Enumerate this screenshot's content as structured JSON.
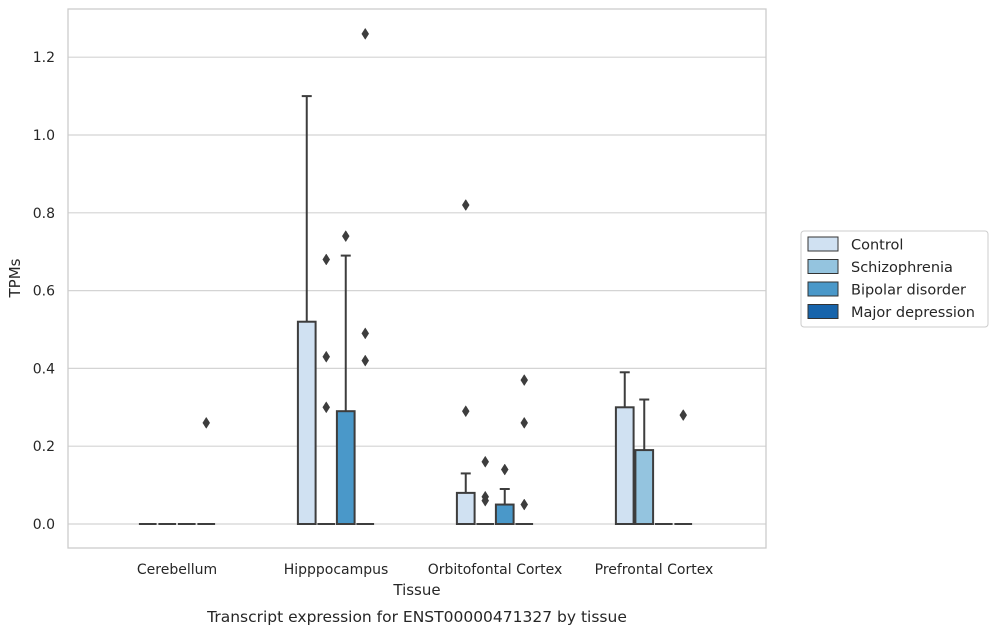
{
  "chart_data": {
    "type": "box",
    "xlabel": "Tissue",
    "ylabel": "TPMs",
    "caption": "Transcript expression for ENST00000471327 by tissue",
    "ylim": [
      -0.06,
      1.33
    ],
    "yticks": [
      "0.0",
      "0.2",
      "0.4",
      "0.6",
      "0.8",
      "1.0",
      "1.2"
    ],
    "categories": [
      "Cerebellum",
      "Hipppocampus",
      "Orbitofontal Cortex",
      "Prefrontal Cortex"
    ],
    "grid": true,
    "legend_position": "right",
    "series": [
      {
        "name": "Control",
        "color": "#d0e1f2",
        "boxes": [
          {
            "q1": 0,
            "median": 0,
            "q3": 0,
            "whislo": 0,
            "whishi": 0,
            "fliers": []
          },
          {
            "q1": 0,
            "median": 0,
            "q3": 0.52,
            "whislo": 0,
            "whishi": 1.1,
            "fliers": []
          },
          {
            "q1": 0,
            "median": 0,
            "q3": 0.08,
            "whislo": 0,
            "whishi": 0.13,
            "fliers": [
              0.82,
              0.29
            ]
          },
          {
            "q1": 0,
            "median": 0,
            "q3": 0.3,
            "whislo": 0,
            "whishi": 0.39,
            "fliers": []
          }
        ]
      },
      {
        "name": "Schizophrenia",
        "color": "#94c4df",
        "boxes": [
          {
            "q1": 0,
            "median": 0,
            "q3": 0,
            "whislo": 0,
            "whishi": 0,
            "fliers": []
          },
          {
            "q1": 0,
            "median": 0,
            "q3": 0,
            "whislo": 0,
            "whishi": 0,
            "fliers": [
              0.68,
              0.43,
              0.3
            ]
          },
          {
            "q1": 0,
            "median": 0,
            "q3": 0,
            "whislo": 0,
            "whishi": 0,
            "fliers": [
              0.16,
              0.07,
              0.06
            ]
          },
          {
            "q1": 0,
            "median": 0,
            "q3": 0.19,
            "whislo": 0,
            "whishi": 0.32,
            "fliers": []
          }
        ]
      },
      {
        "name": "Bipolar disorder",
        "color": "#4a98c9",
        "boxes": [
          {
            "q1": 0,
            "median": 0,
            "q3": 0,
            "whislo": 0,
            "whishi": 0,
            "fliers": []
          },
          {
            "q1": 0,
            "median": 0,
            "q3": 0.29,
            "whislo": 0,
            "whishi": 0.69,
            "fliers": [
              0.74
            ]
          },
          {
            "q1": 0,
            "median": 0,
            "q3": 0.05,
            "whislo": 0,
            "whishi": 0.09,
            "fliers": [
              0.14
            ]
          },
          {
            "q1": 0,
            "median": 0,
            "q3": 0,
            "whislo": 0,
            "whishi": 0,
            "fliers": []
          }
        ]
      },
      {
        "name": "Major depression",
        "color": "#1764ab",
        "boxes": [
          {
            "q1": 0,
            "median": 0,
            "q3": 0,
            "whislo": 0,
            "whishi": 0,
            "fliers": [
              0.26
            ]
          },
          {
            "q1": 0,
            "median": 0,
            "q3": 0,
            "whislo": 0,
            "whishi": 0,
            "fliers": [
              1.26,
              0.49,
              0.42
            ]
          },
          {
            "q1": 0,
            "median": 0,
            "q3": 0,
            "whislo": 0,
            "whishi": 0,
            "fliers": [
              0.37,
              0.26,
              0.05
            ]
          },
          {
            "q1": 0,
            "median": 0,
            "q3": 0,
            "whislo": 0,
            "whishi": 0,
            "fliers": [
              0.28
            ]
          }
        ]
      }
    ]
  }
}
